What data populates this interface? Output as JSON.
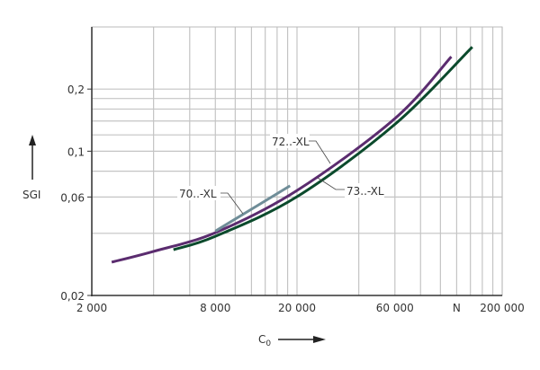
{
  "chart_data": {
    "type": "line",
    "title": "",
    "xlabel": "C",
    "xlabel_subscript": "0",
    "ylabel": "SGI",
    "x_scale": "log",
    "y_scale": "log",
    "xlim": [
      2000,
      200000
    ],
    "ylim": [
      0.02,
      0.4
    ],
    "grid": true,
    "x_tick_labels": [
      {
        "value": 2000,
        "label": "2 000"
      },
      {
        "value": 8000,
        "label": "8 000"
      },
      {
        "value": 20000,
        "label": "20 000"
      },
      {
        "value": 60000,
        "label": "60 000"
      },
      {
        "value": 120000,
        "label": "N"
      },
      {
        "value": 200000,
        "label": "200 000"
      }
    ],
    "y_tick_labels": [
      {
        "value": 0.02,
        "label": "0,02"
      },
      {
        "value": 0.06,
        "label": "0,06"
      },
      {
        "value": 0.1,
        "label": "0,1"
      },
      {
        "value": 0.2,
        "label": "0,2"
      }
    ],
    "x_gridlines": [
      2000,
      4000,
      6000,
      8000,
      10000,
      12000,
      14000,
      16000,
      18000,
      20000,
      40000,
      60000,
      80000,
      100000,
      120000,
      140000,
      160000,
      180000,
      200000
    ],
    "y_gridlines": [
      0.04,
      0.06,
      0.08,
      0.1,
      0.12,
      0.14,
      0.16,
      0.18,
      0.2
    ],
    "series": [
      {
        "name": "72..-XL",
        "color": "#5b2c6f",
        "points": [
          [
            2500,
            0.029
          ],
          [
            4000,
            0.0327
          ],
          [
            8000,
            0.0403
          ],
          [
            20000,
            0.0645
          ],
          [
            60000,
            0.144
          ],
          [
            113000,
            0.287
          ]
        ]
      },
      {
        "name": "73..-XL",
        "color": "#0b4a2c",
        "points": [
          [
            5000,
            0.0333
          ],
          [
            8000,
            0.0387
          ],
          [
            20000,
            0.0602
          ],
          [
            60000,
            0.135
          ],
          [
            143000,
            0.32
          ]
        ]
      },
      {
        "name": "70..-XL",
        "color": "#6f8d98",
        "points": [
          [
            8000,
            0.041
          ],
          [
            18500,
            0.068
          ]
        ]
      }
    ]
  }
}
